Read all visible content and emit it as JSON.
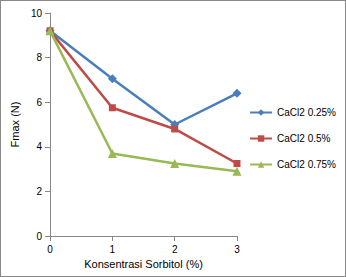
{
  "chart_data": {
    "type": "line",
    "x_label": "Konsentrasi Sorbitol (%)",
    "y_label": "Fmax (N)",
    "x": [
      0,
      1,
      2,
      3
    ],
    "xlim": [
      0,
      3
    ],
    "xticks": [
      0,
      1,
      2,
      3
    ],
    "ylim": [
      0,
      10
    ],
    "yticks": [
      0,
      2,
      4,
      6,
      8,
      10
    ],
    "grid": false,
    "legend": "right",
    "series": [
      {
        "name": "CaCl2 0.25%",
        "color": "#4a7ebb",
        "marker": "diamond",
        "line_style": "solid",
        "values": [
          9.2,
          7.05,
          5.0,
          6.4
        ]
      },
      {
        "name": "CaCl2 0.5%",
        "color": "#be4b48",
        "marker": "square",
        "line_style": "solid",
        "values": [
          9.2,
          5.75,
          4.8,
          3.25
        ]
      },
      {
        "name": "CaCl2 0.75%",
        "color": "#98b954",
        "marker": "triangle",
        "line_style": "solid",
        "values": [
          9.2,
          3.7,
          3.25,
          2.9
        ]
      }
    ]
  }
}
